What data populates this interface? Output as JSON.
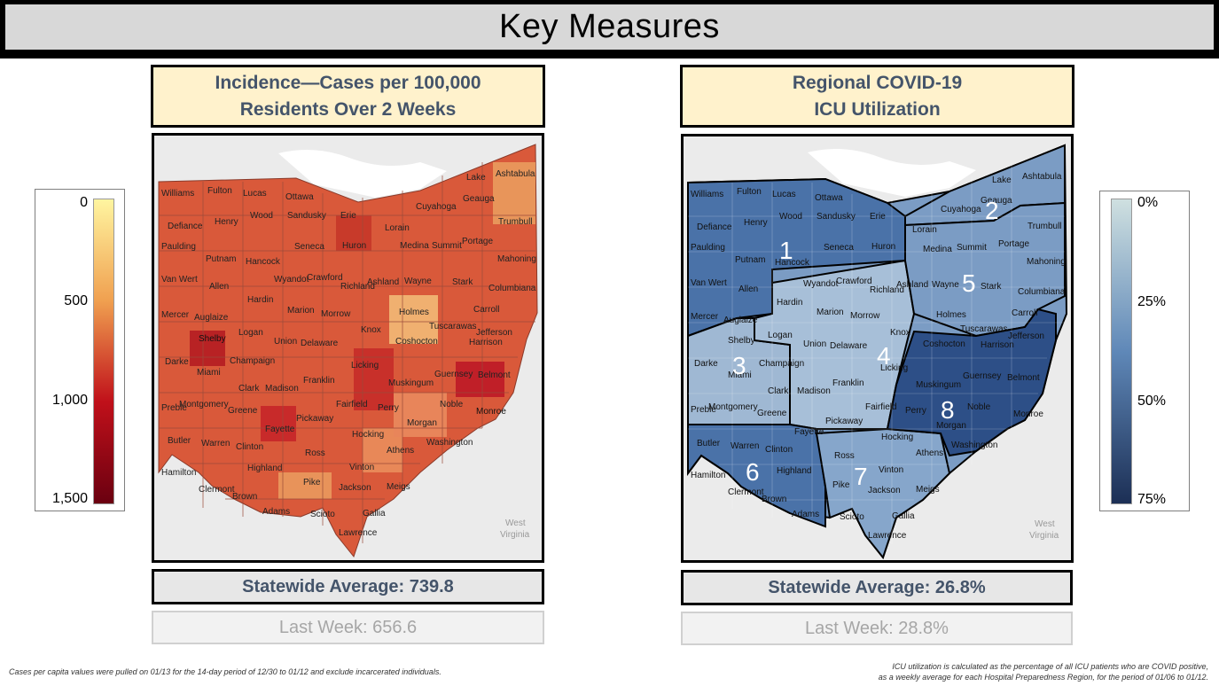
{
  "page": {
    "title": "Key Measures"
  },
  "incidence": {
    "header_line1": "Incidence—Cases per 100,000",
    "header_line2": "Residents Over 2 Weeks",
    "statewide": "Statewide Average: 739.8",
    "last_week": "Last Week: 656.6",
    "legend_ticks": [
      "0",
      "500",
      "1,000",
      "1,500"
    ],
    "legend_colors": [
      "#fff5a0",
      "#f0a050",
      "#c0101a",
      "#6a0010"
    ],
    "footnote": "Cases per capita values were pulled on 01/13 for the 14-day period of 12/30 to 01/12 and exclude incarcerated individuals."
  },
  "icu": {
    "header_line1": "Regional COVID-19",
    "header_line2": "ICU Utilization",
    "statewide": "Statewide Average: 26.8%",
    "last_week": "Last Week: 28.8%",
    "legend_ticks": [
      "0%",
      "25%",
      "50%",
      "75%"
    ],
    "legend_colors": [
      "#cfe0e0",
      "#5f88b8",
      "#1c2f55"
    ],
    "footnote_line1": "ICU utilization is calculated as the percentage of all ICU patients who are COVID positive,",
    "footnote_line2": "as a weekly average for each Hospital Preparedness Region, for the period of 01/06 to 01/12."
  },
  "map_labels": {
    "neighbor": [
      "West",
      "Virginia"
    ],
    "counties": [
      "Williams",
      "Fulton",
      "Lucas",
      "Ottawa",
      "Lake",
      "Ashtabula",
      "Geauga",
      "Defiance",
      "Henry",
      "Wood",
      "Sandusky",
      "Erie",
      "Cuyahoga",
      "Trumbull",
      "Paulding",
      "Lorain",
      "Putnam",
      "Hancock",
      "Seneca",
      "Huron",
      "Medina",
      "Summit",
      "Portage",
      "Mahoning",
      "Van Wert",
      "Allen",
      "Wyandot",
      "Crawford",
      "Richland",
      "Ashland",
      "Wayne",
      "Stark",
      "Columbiana",
      "Hardin",
      "Marion",
      "Morrow",
      "Holmes",
      "Carroll",
      "Mercer",
      "Auglaize",
      "Tuscarawas",
      "Jefferson",
      "Shelby",
      "Logan",
      "Union",
      "Delaware",
      "Knox",
      "Coshocton",
      "Harrison",
      "Darke",
      "Champaign",
      "Licking",
      "Guernsey",
      "Belmont",
      "Miami",
      "Clark",
      "Madison",
      "Franklin",
      "Muskingum",
      "Preble",
      "Montgomery",
      "Greene",
      "Fairfield",
      "Perry",
      "Noble",
      "Monroe",
      "Pickaway",
      "Fayette",
      "Morgan",
      "Butler",
      "Warren",
      "Clinton",
      "Hocking",
      "Washington",
      "Athens",
      "Ross",
      "Highland",
      "Vinton",
      "Hamilton",
      "Meigs",
      "Clermont",
      "Brown",
      "Pike",
      "Jackson",
      "Adams",
      "Scioto",
      "Gallia",
      "Lawrence"
    ]
  },
  "regions": [
    "1",
    "2",
    "3",
    "4",
    "5",
    "6",
    "7",
    "8"
  ]
}
